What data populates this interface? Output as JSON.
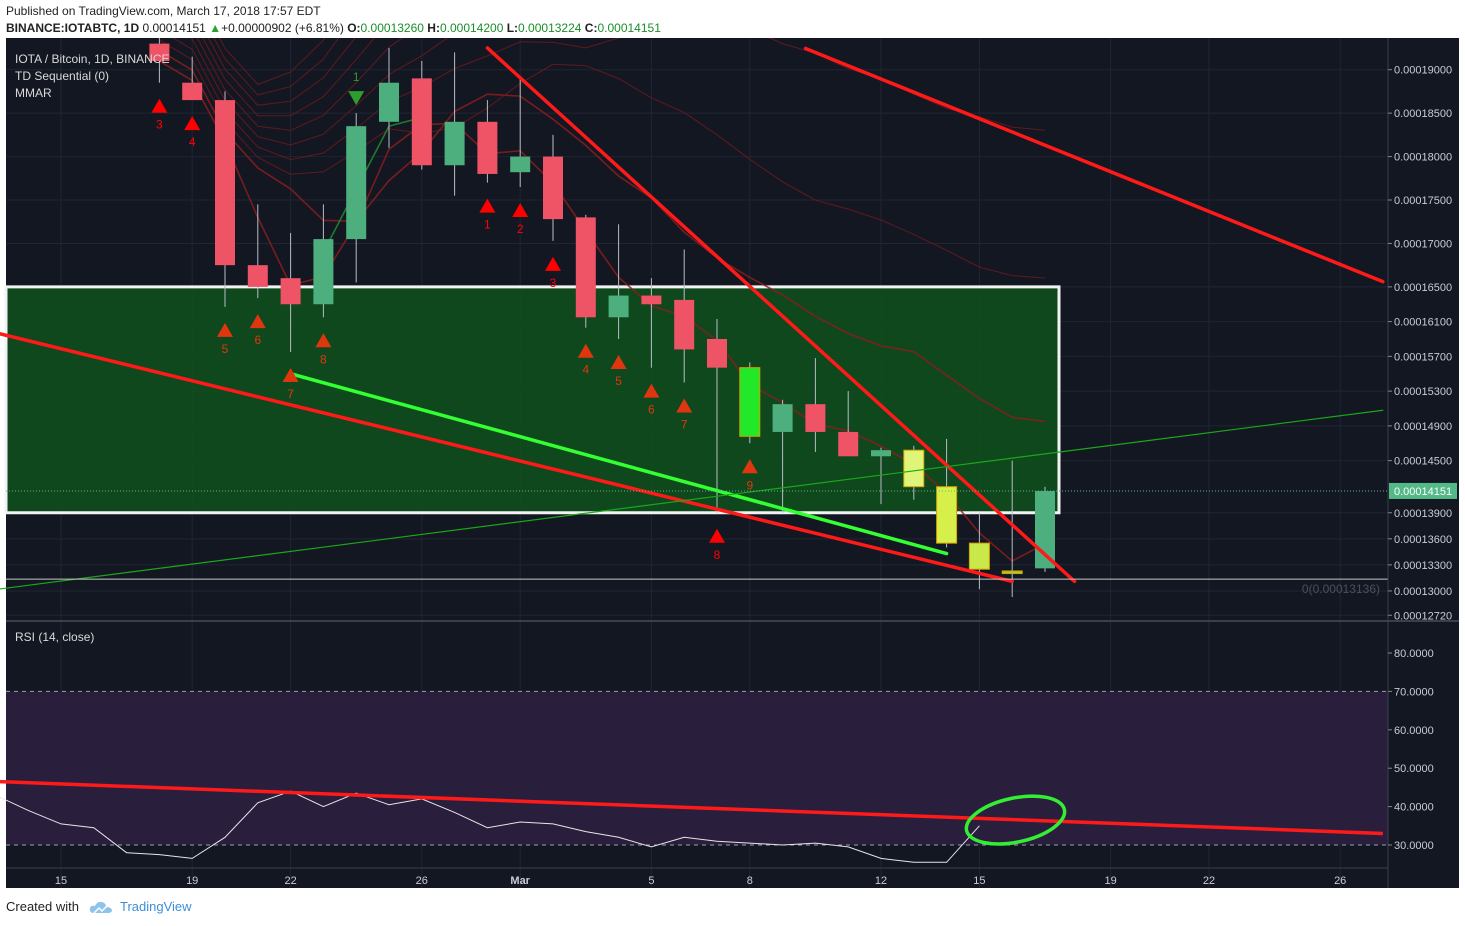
{
  "header": {
    "published": "Published on TradingView.com, March 17, 2018 17:57 EDT",
    "symbol": "BINANCE:IOTABTC, 1D",
    "last": "0.00014151",
    "change": "+0.00000902 (+6.81%)",
    "o_label": "O:",
    "o_value": "0.00013260",
    "h_label": "H:",
    "h_value": "0.00014200",
    "l_label": "L:",
    "l_value": "0.00013224",
    "c_label": "C:",
    "c_value": "0.00014151"
  },
  "legend": {
    "title": "IOTA / Bitcoin, 1D, BINANCE",
    "td": "TD Sequential (0)",
    "mmar": "MMAR",
    "rsi": "RSI (14, close)"
  },
  "footer": {
    "created": "Created with",
    "brand": "TradingView"
  },
  "colors": {
    "background": "#131722",
    "rsi_band": "#2a1e3d",
    "green_zone": "#0f4d1c",
    "up": "#4caf7d",
    "down": "#ef5366",
    "trend_red": "#ff1a1a",
    "trend_green": "#33ff33"
  },
  "chart_data": {
    "type": "candlestick",
    "price_axis": {
      "ticks": [
        "0.00019000",
        "0.00018500",
        "0.00018000",
        "0.00017500",
        "0.00017000",
        "0.00016500",
        "0.00016100",
        "0.00015700",
        "0.00015300",
        "0.00014900",
        "0.00014500",
        "0.00013900",
        "0.00013600",
        "0.00013300",
        "0.00013000",
        "0.00012720"
      ],
      "last_price_label": "0.00014151",
      "fib_label": "0(0.00013136)"
    },
    "rsi_axis": {
      "ticks": [
        "80.0000",
        "70.0000",
        "60.0000",
        "50.0000",
        "40.0000",
        "30.0000"
      ],
      "overbought": 70,
      "oversold": 30,
      "ylim": [
        23.5,
        86
      ]
    },
    "x_ticks": [
      {
        "label": "15",
        "day": 15
      },
      {
        "label": "19",
        "day": 19
      },
      {
        "label": "22",
        "day": 22
      },
      {
        "label": "26",
        "day": 26
      },
      {
        "label": "Mar",
        "day": 29,
        "bold": true
      },
      {
        "label": "5",
        "day": 33
      },
      {
        "label": "8",
        "day": 36
      },
      {
        "label": "12",
        "day": 40
      },
      {
        "label": "15",
        "day": 43
      },
      {
        "label": "19",
        "day": 47
      },
      {
        "label": "22",
        "day": 50
      },
      {
        "label": "26",
        "day": 54
      }
    ],
    "candles": [
      {
        "day": 18,
        "o": 0.000193,
        "h": 0.000196,
        "l": 0.0001885,
        "c": 0.000191
      },
      {
        "day": 19,
        "o": 0.0001885,
        "h": 0.0001915,
        "l": 0.0001865,
        "c": 0.0001865
      },
      {
        "day": 20,
        "o": 0.0001865,
        "h": 0.0001875,
        "l": 0.0001627,
        "c": 0.0001675
      },
      {
        "day": 21,
        "o": 0.0001675,
        "h": 0.0001745,
        "l": 0.0001637,
        "c": 0.000165
      },
      {
        "day": 22,
        "o": 0.000166,
        "h": 0.0001712,
        "l": 0.0001575,
        "c": 0.000163
      },
      {
        "day": 23,
        "o": 0.000163,
        "h": 0.0001745,
        "l": 0.0001615,
        "c": 0.0001705
      },
      {
        "day": 24,
        "o": 0.0001705,
        "h": 0.000185,
        "l": 0.0001655,
        "c": 0.0001835
      },
      {
        "day": 25,
        "o": 0.000184,
        "h": 0.0001925,
        "l": 0.000181,
        "c": 0.0001885
      },
      {
        "day": 26,
        "o": 0.000189,
        "h": 0.000191,
        "l": 0.0001785,
        "c": 0.000179
      },
      {
        "day": 27,
        "o": 0.000179,
        "h": 0.000192,
        "l": 0.0001755,
        "c": 0.000184
      },
      {
        "day": 28,
        "o": 0.000184,
        "h": 0.0001865,
        "l": 0.000177,
        "c": 0.000178
      },
      {
        "day": 29,
        "o": 0.0001782,
        "h": 0.000189,
        "l": 0.0001765,
        "c": 0.00018
      },
      {
        "day": 30,
        "o": 0.00018,
        "h": 0.0001825,
        "l": 0.0001703,
        "c": 0.0001728
      },
      {
        "day": 31,
        "o": 0.000173,
        "h": 0.0001733,
        "l": 0.0001603,
        "c": 0.0001615
      },
      {
        "day": 32,
        "o": 0.0001615,
        "h": 0.0001722,
        "l": 0.000159,
        "c": 0.000164
      },
      {
        "day": 33,
        "o": 0.000164,
        "h": 0.000166,
        "l": 0.0001557,
        "c": 0.000163
      },
      {
        "day": 34,
        "o": 0.0001635,
        "h": 0.0001693,
        "l": 0.000154,
        "c": 0.0001578
      },
      {
        "day": 35,
        "o": 0.000159,
        "h": 0.0001613,
        "l": 0.000139,
        "c": 0.0001557
      },
      {
        "day": 36,
        "o": 0.0001557,
        "h": 0.0001563,
        "l": 0.000147,
        "c": 0.0001478
      },
      {
        "day": 37,
        "o": 0.0001483,
        "h": 0.000152,
        "l": 0.000139,
        "c": 0.0001515
      },
      {
        "day": 38,
        "o": 0.0001515,
        "h": 0.0001568,
        "l": 0.000146,
        "c": 0.0001483
      },
      {
        "day": 39,
        "o": 0.0001483,
        "h": 0.000153,
        "l": 0.0001455,
        "c": 0.0001455
      },
      {
        "day": 40,
        "o": 0.0001455,
        "h": 0.0001465,
        "l": 0.00014,
        "c": 0.0001462
      },
      {
        "day": 41,
        "o": 0.0001462,
        "h": 0.0001467,
        "l": 0.0001405,
        "c": 0.000142
      },
      {
        "day": 42,
        "o": 0.000142,
        "h": 0.0001475,
        "l": 0.000135,
        "c": 0.0001355
      },
      {
        "day": 43,
        "o": 0.0001355,
        "h": 0.000139,
        "l": 0.0001302,
        "c": 0.0001325
      },
      {
        "day": 44,
        "o": 0.000132,
        "h": 0.000145,
        "l": 0.0001293,
        "c": 0.0001323
      },
      {
        "day": 45,
        "o": 0.0001326,
        "h": 0.000142,
        "l": 0.0001322,
        "c": 0.0001415
      }
    ],
    "highlight_candles": [
      {
        "day": 36,
        "color": "#22e82a"
      },
      {
        "day": 41,
        "color": "#dff57a"
      },
      {
        "day": 42,
        "color": "#d6ef4a"
      },
      {
        "day": 43,
        "color": "#c9e84a"
      },
      {
        "day": 44,
        "color": "#9ccf30"
      }
    ],
    "td_markers": [
      {
        "day": 18,
        "label": "3",
        "color": "#ff0000"
      },
      {
        "day": 19,
        "label": "4",
        "color": "#ff0000"
      },
      {
        "day": 20,
        "label": "5",
        "color": "#e0360f"
      },
      {
        "day": 21,
        "label": "6",
        "color": "#e0360f"
      },
      {
        "day": 22,
        "label": "7",
        "color": "#e0360f"
      },
      {
        "day": 23,
        "label": "8",
        "color": "#e0360f"
      },
      {
        "day": 28,
        "label": "1",
        "color": "#ff0000"
      },
      {
        "day": 29,
        "label": "2",
        "color": "#ff0000"
      },
      {
        "day": 30,
        "label": "3",
        "color": "#ff0000"
      },
      {
        "day": 31,
        "label": "4",
        "color": "#e0360f"
      },
      {
        "day": 32,
        "label": "5",
        "color": "#e0360f"
      },
      {
        "day": 33,
        "label": "6",
        "color": "#e0360f"
      },
      {
        "day": 34,
        "label": "7",
        "color": "#e0360f"
      },
      {
        "day": 35,
        "label": "8",
        "color": "#ff0000"
      },
      {
        "day": 36,
        "label": "9",
        "color": "#e0360f"
      }
    ],
    "td_sell_marker": {
      "day": 24,
      "label": "1",
      "color": "#2d9e2d"
    },
    "green_zone": {
      "from_day": 10,
      "to_day": 45,
      "top": 0.000165,
      "bottom": 0.000139
    },
    "trendlines": [
      {
        "name": "",
        "color": "#ff1a1a",
        "from": {
          "day": 10,
          "price": 0.0001625
        },
        "to": {
          "day": 44,
          "price": 0.0001311
        }
      },
      {
        "name": "",
        "color": "#ff1a1a",
        "from": {
          "day": 28,
          "price": 0.0001925
        },
        "to": {
          "day": 45.9,
          "price": 0.0001311
        }
      },
      {
        "name": "",
        "color": "#ff1a1a",
        "from": {
          "day": 37.7,
          "price": 0.00019244
        },
        "to": {
          "day": 55.3,
          "price": 0.0001656
        }
      },
      {
        "name": "",
        "color": "#33ff33",
        "from": {
          "day": 22,
          "price": 0.000155
        },
        "to": {
          "day": 42,
          "price": 0.0001343
        }
      },
      {
        "name": "",
        "color": "#1aa81a",
        "from": {
          "day": 10,
          "price": 0.0001287
        },
        "to": {
          "day": 55.3,
          "price": 0.0001508
        }
      }
    ],
    "rsi": [
      {
        "day": 10,
        "v": 46
      },
      {
        "day": 11,
        "v": 47.5
      },
      {
        "day": 12,
        "v": 45
      },
      {
        "day": 13,
        "v": 43
      },
      {
        "day": 14,
        "v": 39
      },
      {
        "day": 15,
        "v": 35.5
      },
      {
        "day": 16,
        "v": 34.5
      },
      {
        "day": 17,
        "v": 28
      },
      {
        "day": 18,
        "v": 27.5
      },
      {
        "day": 19,
        "v": 26.5
      },
      {
        "day": 20,
        "v": 32
      },
      {
        "day": 21,
        "v": 41
      },
      {
        "day": 22,
        "v": 44
      },
      {
        "day": 23,
        "v": 40
      },
      {
        "day": 24,
        "v": 43.5
      },
      {
        "day": 25,
        "v": 40.5
      },
      {
        "day": 26,
        "v": 42
      },
      {
        "day": 27,
        "v": 38.5
      },
      {
        "day": 28,
        "v": 34.5
      },
      {
        "day": 29,
        "v": 36
      },
      {
        "day": 30,
        "v": 35.5
      },
      {
        "day": 31,
        "v": 33.5
      },
      {
        "day": 32,
        "v": 32
      },
      {
        "day": 33,
        "v": 29.5
      },
      {
        "day": 34,
        "v": 32
      },
      {
        "day": 35,
        "v": 31
      },
      {
        "day": 36,
        "v": 30.5
      },
      {
        "day": 37,
        "v": 30
      },
      {
        "day": 38,
        "v": 30.5
      },
      {
        "day": 39,
        "v": 29.5
      },
      {
        "day": 40,
        "v": 26.5
      },
      {
        "day": 41,
        "v": 25.5
      },
      {
        "day": 42,
        "v": 25.5
      },
      {
        "day": 43,
        "v": 35
      }
    ],
    "rsi_trendline": {
      "from": {
        "day": 10,
        "v": 47.5
      },
      "to": {
        "day": 55.3,
        "v": 33
      }
    },
    "rsi_highlight_ellipse": {
      "day": 44.1,
      "v": 36.5
    }
  }
}
